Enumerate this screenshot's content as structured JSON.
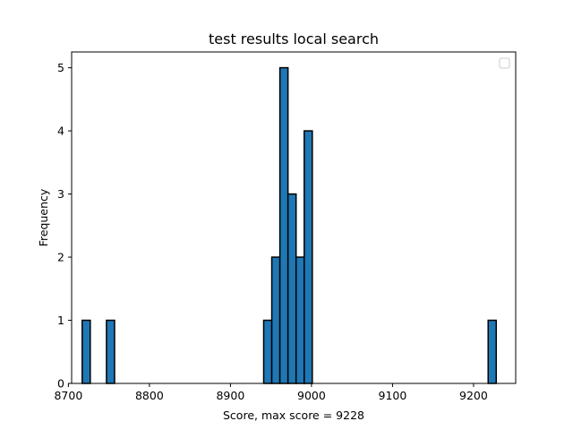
{
  "chart_data": {
    "type": "bar",
    "title": "test results local search",
    "xlabel": "Score, max score = 9228",
    "ylabel": "Frequency",
    "xlim": [
      8704,
      9252
    ],
    "ylim": [
      0,
      5.25
    ],
    "x_ticks": [
      8700,
      8800,
      8900,
      9000,
      9100,
      9200
    ],
    "y_ticks": [
      0,
      1,
      2,
      3,
      4,
      5
    ],
    "bin_width": 10,
    "bins": [
      {
        "start": 8717,
        "end": 8727,
        "count": 1
      },
      {
        "start": 8747,
        "end": 8757,
        "count": 1
      },
      {
        "start": 8941,
        "end": 8951,
        "count": 1
      },
      {
        "start": 8951,
        "end": 8961,
        "count": 2
      },
      {
        "start": 8961,
        "end": 8971,
        "count": 5
      },
      {
        "start": 8971,
        "end": 8981,
        "count": 3
      },
      {
        "start": 8981,
        "end": 8991,
        "count": 2
      },
      {
        "start": 8991,
        "end": 9001,
        "count": 4
      },
      {
        "start": 9218,
        "end": 9228,
        "count": 1
      }
    ],
    "bar_color": "#1f77b4",
    "edge_color": "#000000",
    "grid": false,
    "legend": {
      "placement": "top-right",
      "entries": []
    }
  }
}
